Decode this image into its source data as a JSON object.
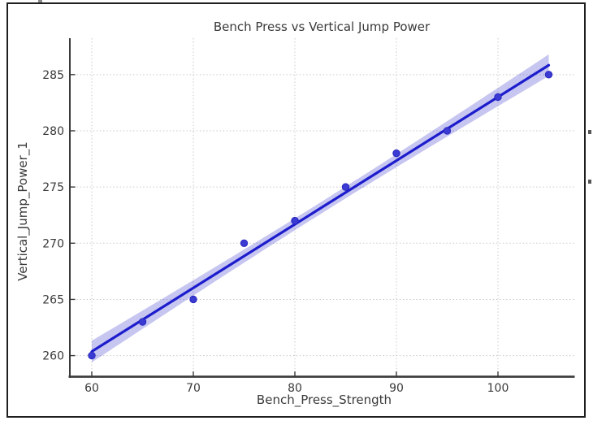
{
  "chart_data": {
    "type": "scatter",
    "title": "Bench Press vs Vertical Jump Power",
    "xlabel": "Bench_Press_Strength",
    "ylabel": "Vertical_Jump_Power_1",
    "x": [
      60,
      65,
      70,
      75,
      80,
      85,
      90,
      95,
      100,
      105
    ],
    "y": [
      260,
      263,
      265,
      270,
      272,
      275,
      278,
      280,
      283,
      285
    ],
    "x_ticks": [
      60,
      70,
      80,
      90,
      100
    ],
    "y_ticks": [
      260,
      265,
      270,
      275,
      280,
      285
    ],
    "xlim": [
      57.84,
      107.52
    ],
    "ylim": [
      258.12,
      288.24
    ],
    "grid": "dotted, both axes",
    "legend": "none",
    "regression": {
      "show_line": true,
      "show_ci_band": true,
      "ci_level": 0.95,
      "line_spans_x": [
        60,
        105
      ]
    },
    "colors": {
      "point": "#3b3bd4",
      "point_edge": "#2727be",
      "line": "#1c1ccd",
      "band": "#3333cc",
      "band_opacity": "0.28",
      "grid": "#c9c9c9",
      "spine": "#3a3a3a",
      "text": "#3a3a3a",
      "frame_border": "#1e1e1e"
    }
  }
}
